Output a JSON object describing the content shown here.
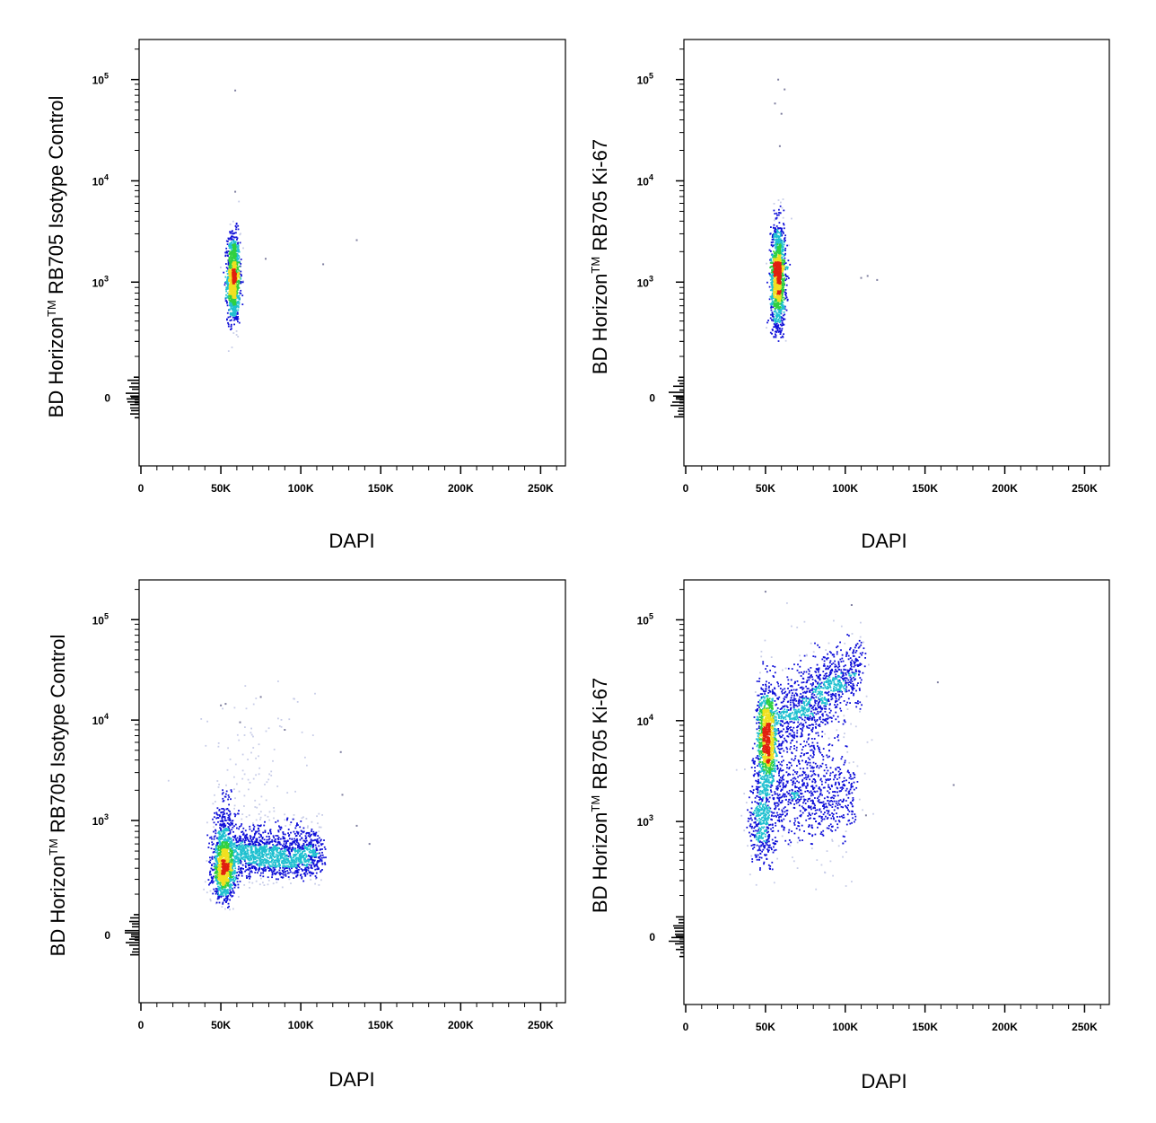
{
  "figure_title": "",
  "colors": {
    "density_low": "#c8cde8",
    "density_blue": "#1010d8",
    "density_cyan": "#20c0d0",
    "density_green": "#30d040",
    "density_yellow": "#f0e020",
    "density_red": "#e02010"
  },
  "chart_data": [
    {
      "type": "scatter",
      "panel": "top-left",
      "xlabel": "DAPI",
      "ylabel": {
        "main": "BD Horizon",
        "tm": "TM",
        "rest": "  RB705  Isotype Control"
      },
      "x_ticks": [
        "0",
        "50K",
        "100K",
        "150K",
        "200K",
        "250K"
      ],
      "x_tick_values": [
        0,
        50000,
        100000,
        150000,
        200000,
        250000
      ],
      "y_ticks": [
        {
          "base": "0",
          "exp": "",
          "value": 0
        },
        {
          "base": "10",
          "exp": "3",
          "value": 1000
        },
        {
          "base": "10",
          "exp": "4",
          "value": 10000
        },
        {
          "base": "10",
          "exp": "5",
          "value": 100000
        }
      ],
      "xlim": [
        0,
        262144
      ],
      "ylim": [
        -300,
        262144
      ],
      "y_scale": "biexponential",
      "populations": [
        {
          "x_center": 58000,
          "x_spread": 2000,
          "y_center": 1100,
          "y_spread_log": 0.22,
          "y_skew": 0.0,
          "count": 1100
        }
      ],
      "outliers": [
        {
          "x": 59000,
          "y": 78000
        },
        {
          "x": 59000,
          "y": 7800
        },
        {
          "x": 114000,
          "y": 1500
        },
        {
          "x": 135000,
          "y": 2600
        },
        {
          "x": 78000,
          "y": 1700
        }
      ]
    },
    {
      "type": "scatter",
      "panel": "top-right",
      "xlabel": "DAPI",
      "ylabel": {
        "main": "BD Horizon",
        "tm": "TM",
        "rest": "  RB705  Ki-67"
      },
      "x_ticks": [
        "0",
        "50K",
        "100K",
        "150K",
        "200K",
        "250K"
      ],
      "x_tick_values": [
        0,
        50000,
        100000,
        150000,
        200000,
        250000
      ],
      "y_ticks": [
        {
          "base": "0",
          "exp": "",
          "value": 0
        },
        {
          "base": "10",
          "exp": "3",
          "value": 1000
        },
        {
          "base": "10",
          "exp": "4",
          "value": 10000
        },
        {
          "base": "10",
          "exp": "5",
          "value": 100000
        }
      ],
      "xlim": [
        0,
        262144
      ],
      "ylim": [
        -300,
        262144
      ],
      "y_scale": "biexponential",
      "populations": [
        {
          "x_center": 58000,
          "x_spread": 2300,
          "y_center": 1150,
          "y_spread_log": 0.26,
          "y_skew": 0.0,
          "count": 1300
        }
      ],
      "outliers": [
        {
          "x": 58000,
          "y": 100000
        },
        {
          "x": 62000,
          "y": 80000
        },
        {
          "x": 56000,
          "y": 58000
        },
        {
          "x": 60000,
          "y": 46000
        },
        {
          "x": 59000,
          "y": 22000
        },
        {
          "x": 110000,
          "y": 1100
        },
        {
          "x": 114000,
          "y": 1150
        },
        {
          "x": 120000,
          "y": 1050
        }
      ]
    },
    {
      "type": "scatter",
      "panel": "bottom-left",
      "xlabel": "DAPI",
      "ylabel": {
        "main": "BD Horizon",
        "tm": "TM",
        "rest": "  RB705  Isotype Control"
      },
      "x_ticks": [
        "0",
        "50K",
        "100K",
        "150K",
        "200K",
        "250K"
      ],
      "x_tick_values": [
        0,
        50000,
        100000,
        150000,
        200000,
        250000
      ],
      "y_ticks": [
        {
          "base": "0",
          "exp": "",
          "value": 0
        },
        {
          "base": "10",
          "exp": "3",
          "value": 1000
        },
        {
          "base": "10",
          "exp": "4",
          "value": 10000
        },
        {
          "base": "10",
          "exp": "5",
          "value": 100000
        }
      ],
      "xlim": [
        0,
        262144
      ],
      "ylim": [
        -300,
        262144
      ],
      "y_scale": "biexponential",
      "populations": [
        {
          "x_center": 52000,
          "x_spread": 3500,
          "y_center": 330,
          "y_spread_log": 0.28,
          "y_skew": 0.0,
          "count": 1300
        },
        {
          "x_min": 58000,
          "x_max": 112000,
          "y_center": 450,
          "y_spread_log": 0.16,
          "count": 1500
        },
        {
          "x_center": 70000,
          "x_spread": 18000,
          "y_center": 3000,
          "y_spread_log": 0.45,
          "y_skew": 0.0,
          "count": 110
        }
      ],
      "outliers": [
        {
          "x": 50000,
          "y": 14000
        },
        {
          "x": 53000,
          "y": 14500
        },
        {
          "x": 75000,
          "y": 17000
        },
        {
          "x": 62000,
          "y": 9500
        },
        {
          "x": 90000,
          "y": 8000
        },
        {
          "x": 125000,
          "y": 4800
        },
        {
          "x": 126000,
          "y": 1800
        },
        {
          "x": 135000,
          "y": 900
        },
        {
          "x": 143000,
          "y": 600
        }
      ]
    },
    {
      "type": "scatter",
      "panel": "bottom-right",
      "xlabel": "DAPI",
      "ylabel": {
        "main": "BD Horizon",
        "tm": "TM",
        "rest": "  RB705  Ki-67"
      },
      "x_ticks": [
        "0",
        "50K",
        "100K",
        "150K",
        "200K",
        "250K"
      ],
      "x_tick_values": [
        0,
        50000,
        100000,
        150000,
        200000,
        250000
      ],
      "y_ticks": [
        {
          "base": "0",
          "exp": "",
          "value": 0
        },
        {
          "base": "10",
          "exp": "3",
          "value": 1000
        },
        {
          "base": "10",
          "exp": "4",
          "value": 10000
        },
        {
          "base": "10",
          "exp": "5",
          "value": 100000
        }
      ],
      "xlim": [
        0,
        262144
      ],
      "ylim": [
        -300,
        262144
      ],
      "y_scale": "biexponential",
      "populations": [
        {
          "x_center": 51000,
          "x_spread": 3000,
          "y_center": 6500,
          "y_spread_log": 0.26,
          "y_skew": 0.0,
          "count": 1100
        },
        {
          "x_center": 48000,
          "x_spread": 4000,
          "y_center": 1100,
          "y_spread_log": 0.25,
          "y_skew": 0.0,
          "count": 450
        },
        {
          "x_min": 55000,
          "x_max": 110000,
          "y_center_start": 9000,
          "y_center_end": 35000,
          "y_spread_log": 0.17,
          "count": 1000
        },
        {
          "x_min": 55000,
          "x_max": 105000,
          "y_center": 1800,
          "y_spread_log": 0.2,
          "count": 550
        },
        {
          "x_center": 78000,
          "x_spread": 15000,
          "y_center": 5000,
          "y_spread_log": 0.5,
          "y_skew": 0.0,
          "count": 400
        }
      ],
      "outliers": [
        {
          "x": 50000,
          "y": 190000
        },
        {
          "x": 104000,
          "y": 140000
        },
        {
          "x": 158000,
          "y": 24000
        },
        {
          "x": 168000,
          "y": 2300
        },
        {
          "x": 113000,
          "y": 1150
        }
      ]
    }
  ]
}
